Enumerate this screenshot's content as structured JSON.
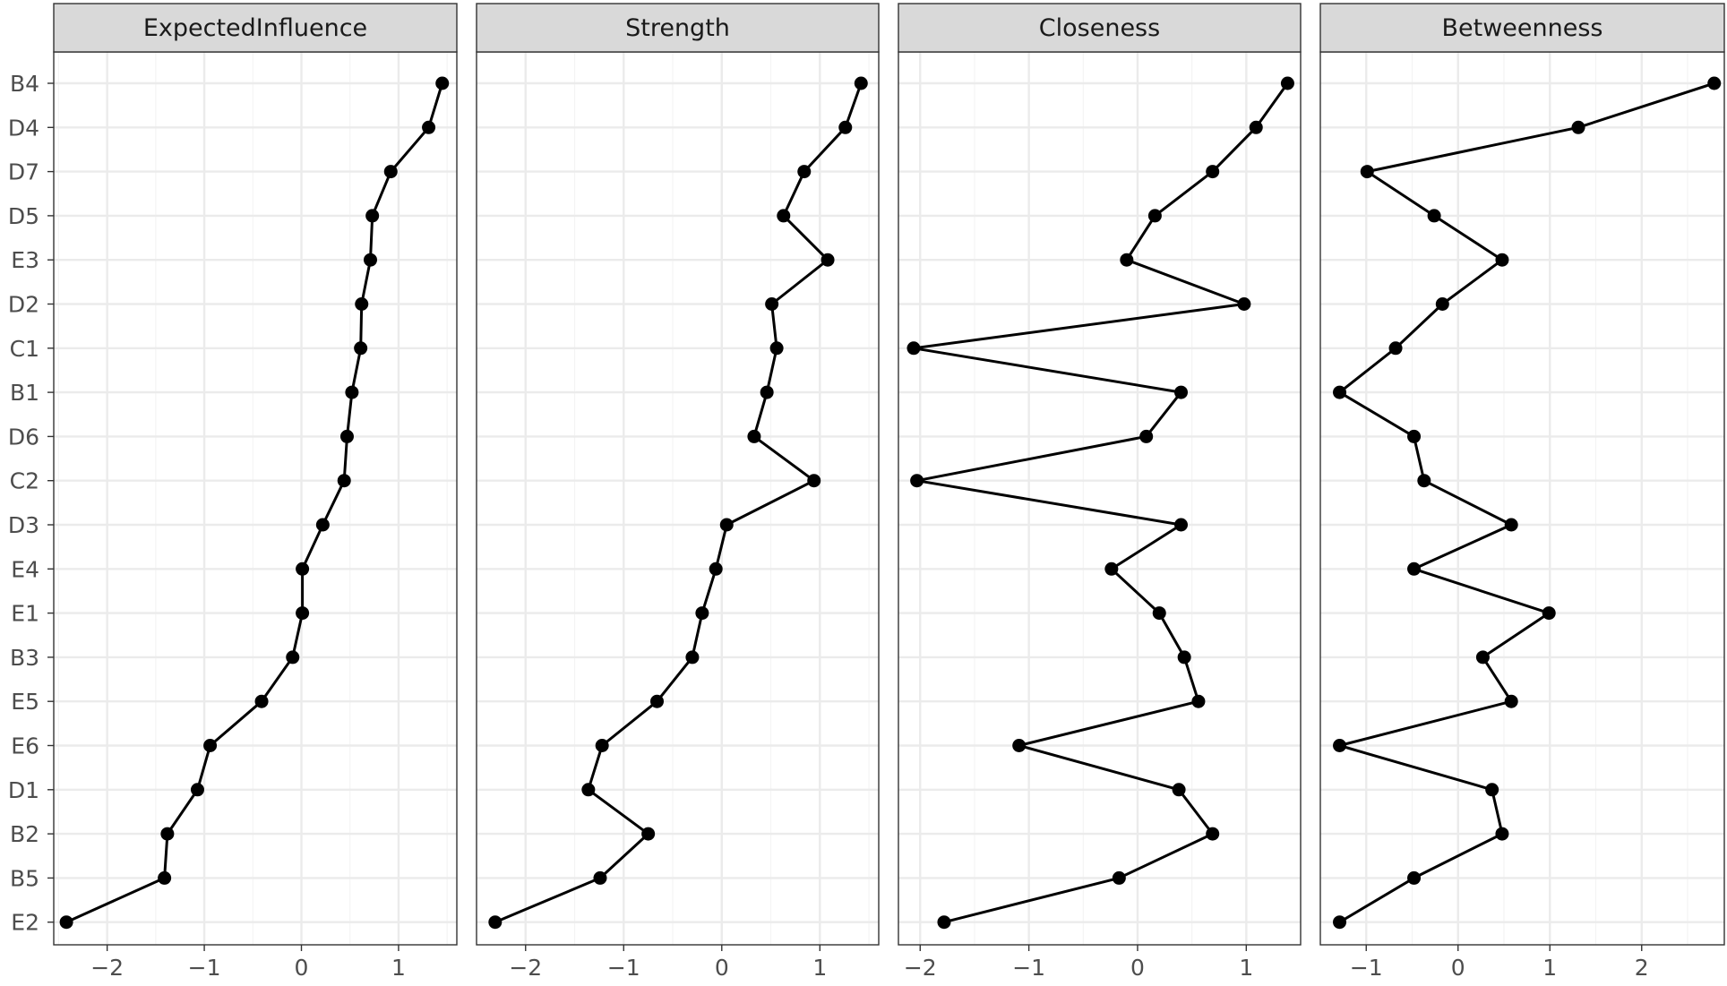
{
  "chart_data": {
    "type": "line",
    "categories": [
      "B4",
      "D4",
      "D7",
      "D5",
      "E3",
      "D2",
      "C1",
      "B1",
      "D6",
      "C2",
      "D3",
      "E4",
      "E1",
      "B3",
      "E5",
      "E6",
      "D1",
      "B2",
      "B5",
      "E2"
    ],
    "grid": true,
    "facets": [
      {
        "label": "ExpectedInfluence",
        "xlim": [
          -2.55,
          1.6
        ],
        "xticks": [
          -2,
          -1,
          0,
          1
        ],
        "xtick_labels": [
          "−2",
          "−1",
          "0",
          "1"
        ],
        "values": [
          1.45,
          1.31,
          0.92,
          0.73,
          0.71,
          0.62,
          0.61,
          0.52,
          0.47,
          0.44,
          0.22,
          0.01,
          0.01,
          -0.09,
          -0.41,
          -0.94,
          -1.07,
          -1.38,
          -1.41,
          -2.42
        ]
      },
      {
        "label": "Strength",
        "xlim": [
          -2.5,
          1.6
        ],
        "xticks": [
          -2,
          -1,
          0,
          1
        ],
        "xtick_labels": [
          "−2",
          "−1",
          "0",
          "1"
        ],
        "values": [
          1.42,
          1.26,
          0.84,
          0.63,
          1.08,
          0.51,
          0.56,
          0.46,
          0.33,
          0.94,
          0.05,
          -0.06,
          -0.2,
          -0.3,
          -0.66,
          -1.22,
          -1.36,
          -0.75,
          -1.24,
          -2.31
        ]
      },
      {
        "label": "Closeness",
        "xlim": [
          -2.2,
          1.5
        ],
        "xticks": [
          -2,
          -1,
          0,
          1
        ],
        "xtick_labels": [
          "−2",
          "−1",
          "0",
          "1"
        ],
        "values": [
          1.38,
          1.09,
          0.69,
          0.16,
          -0.1,
          0.98,
          -2.06,
          0.4,
          0.08,
          -2.03,
          0.4,
          -0.24,
          0.2,
          0.43,
          0.56,
          -1.09,
          0.38,
          0.69,
          -0.17,
          -1.78
        ]
      },
      {
        "label": "Betweenness",
        "xlim": [
          -1.5,
          2.9
        ],
        "xticks": [
          -1,
          0,
          1,
          2
        ],
        "xtick_labels": [
          "−1",
          "0",
          "1",
          "2"
        ],
        "values": [
          2.79,
          1.31,
          -0.99,
          -0.26,
          0.48,
          -0.17,
          -0.68,
          -1.29,
          -0.48,
          -0.37,
          0.58,
          -0.48,
          0.99,
          0.27,
          0.58,
          -1.29,
          0.37,
          0.48,
          -0.48,
          -1.29
        ]
      }
    ]
  }
}
